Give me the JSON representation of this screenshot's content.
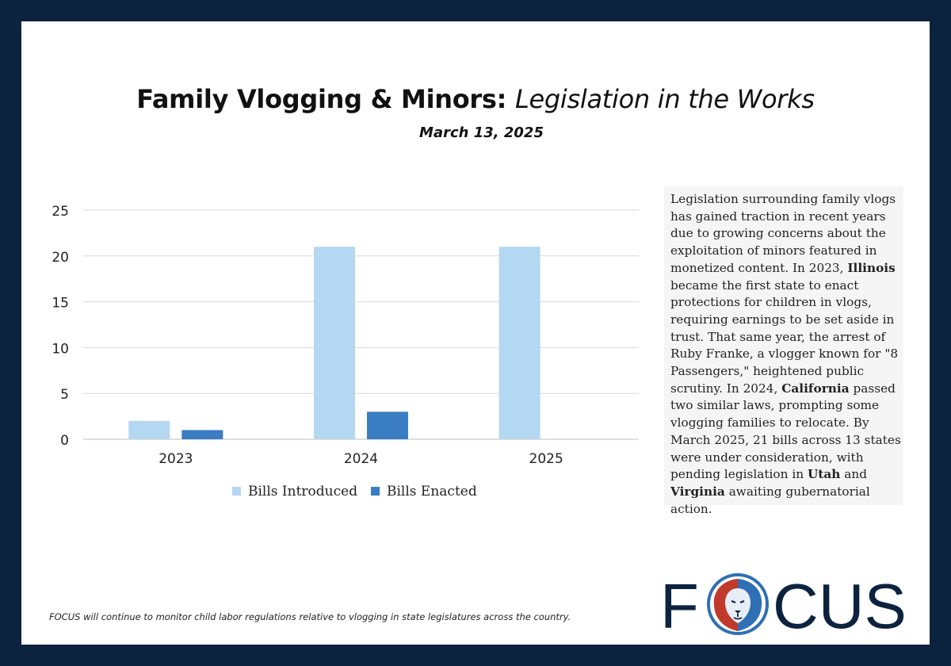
{
  "header": {
    "title_main": "Family Vlogging & Minors:",
    "title_italic": "Legislation in the Works",
    "date": "March 13, 2025"
  },
  "chart_data": {
    "type": "bar",
    "categories": [
      "2023",
      "2024",
      "2025"
    ],
    "series": [
      {
        "name": "Bills Introduced",
        "values": [
          2,
          21,
          21
        ],
        "color": "#b4d7f2"
      },
      {
        "name": "Bills Enacted",
        "values": [
          1,
          3,
          0
        ],
        "color": "#3a7dc2"
      }
    ],
    "ylim": [
      0,
      25
    ],
    "yticks": [
      0,
      5,
      10,
      15,
      20,
      25
    ],
    "grid": true,
    "legend": "bottom"
  },
  "sidebar": {
    "s1": "Legislation surrounding family vlogs has gained traction in recent years due to growing concerns about the exploitation of minors featured in monetized content. In 2023, ",
    "b1": "Illinois",
    "s2": " became the first state to enact protections for children in vlogs, requiring earnings to be set aside in trust. That same year, the arrest of Ruby Franke, a vlogger known for \"8 Passengers,\" heightened public scrutiny. In 2024, ",
    "b2": "California",
    "s3": " passed two similar laws, prompting some vlogging families to relocate. By March 2025, 21 bills across 13 states were under consideration, with pending legislation in ",
    "b3": "Utah",
    "s4": " and ",
    "b4": "Virginia",
    "s5": " awaiting gubernatorial action."
  },
  "footnote": "FOCUS will continue to monitor child labor regulations relative to vlogging in state legislatures across the country.",
  "logo": {
    "letter_f": "F",
    "letters_cus": "CUS",
    "icon": "lion-head-icon",
    "text_color": "#0c2340",
    "lion_colors": [
      "#c0392b",
      "#2f6fb5",
      "#e8eef6"
    ]
  }
}
